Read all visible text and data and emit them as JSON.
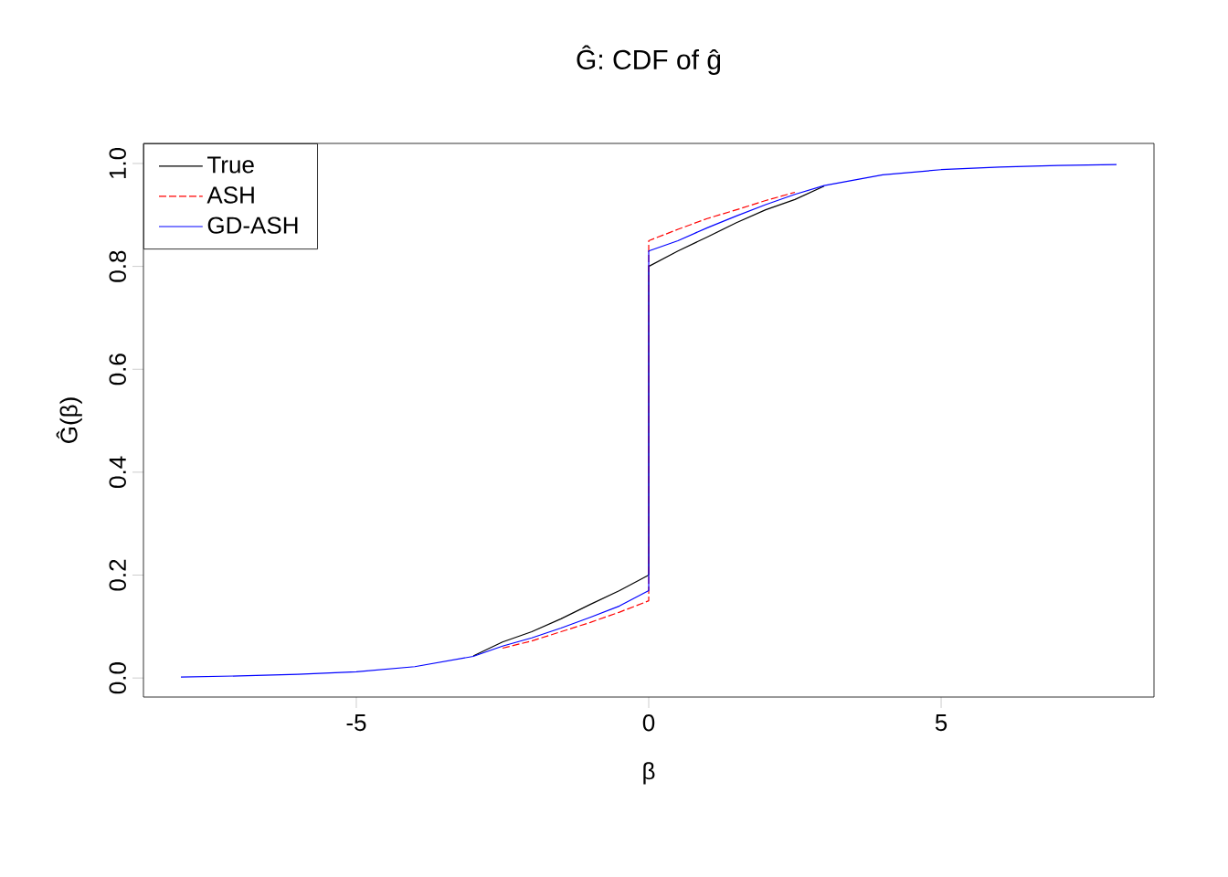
{
  "chart_data": {
    "type": "line",
    "title": "Ĝ: CDF of ĝ",
    "xlabel": "β",
    "ylabel": "Ĝ(β)",
    "xlim": [
      -8.64,
      8.64
    ],
    "ylim": [
      -0.037,
      1.039
    ],
    "xticks": [
      -5,
      0,
      5
    ],
    "yticks": [
      {
        "value": 0,
        "label": "0.0"
      },
      {
        "value": 0.2,
        "label": "0.2"
      },
      {
        "value": 0.4,
        "label": "0.4"
      },
      {
        "value": 0.6,
        "label": "0.6"
      },
      {
        "value": 0.8,
        "label": "0.8"
      },
      {
        "value": 1,
        "label": "1.0"
      }
    ],
    "legend": "top left",
    "marker": "none",
    "series": [
      {
        "name": "True",
        "color": "#000000",
        "line_style": "solid",
        "x": [
          -3,
          -2.5,
          -2,
          -1.5,
          -1,
          -0.5,
          0,
          0,
          0.5,
          1,
          1.5,
          2,
          2.5,
          3
        ],
        "values": [
          0.043,
          0.07,
          0.09,
          0.115,
          0.143,
          0.17,
          0.2,
          0.8,
          0.83,
          0.857,
          0.885,
          0.91,
          0.93,
          0.956
        ]
      },
      {
        "name": "ASH",
        "color": "#ff0000",
        "line_style": "dashed",
        "x": [
          -2.5,
          -2,
          -1.5,
          -1,
          -0.5,
          0,
          0,
          0.5,
          1,
          1.5,
          2,
          2.5
        ],
        "values": [
          0.058,
          0.072,
          0.09,
          0.108,
          0.128,
          0.15,
          0.85,
          0.872,
          0.893,
          0.91,
          0.928,
          0.944
        ]
      },
      {
        "name": "GD-ASH",
        "color": "#0000ff",
        "line_style": "solid",
        "x": [
          -8,
          -7,
          -6,
          -5,
          -4,
          -3,
          -2.5,
          -2,
          -1.5,
          -1,
          -0.5,
          0,
          0,
          0.5,
          1,
          1.5,
          2,
          2.5,
          3,
          4,
          5,
          6,
          7,
          8
        ],
        "values": [
          0.002,
          0.004,
          0.007,
          0.012,
          0.022,
          0.042,
          0.062,
          0.078,
          0.097,
          0.118,
          0.14,
          0.17,
          0.83,
          0.85,
          0.875,
          0.898,
          0.92,
          0.94,
          0.957,
          0.978,
          0.988,
          0.993,
          0.996,
          0.998
        ]
      }
    ]
  }
}
